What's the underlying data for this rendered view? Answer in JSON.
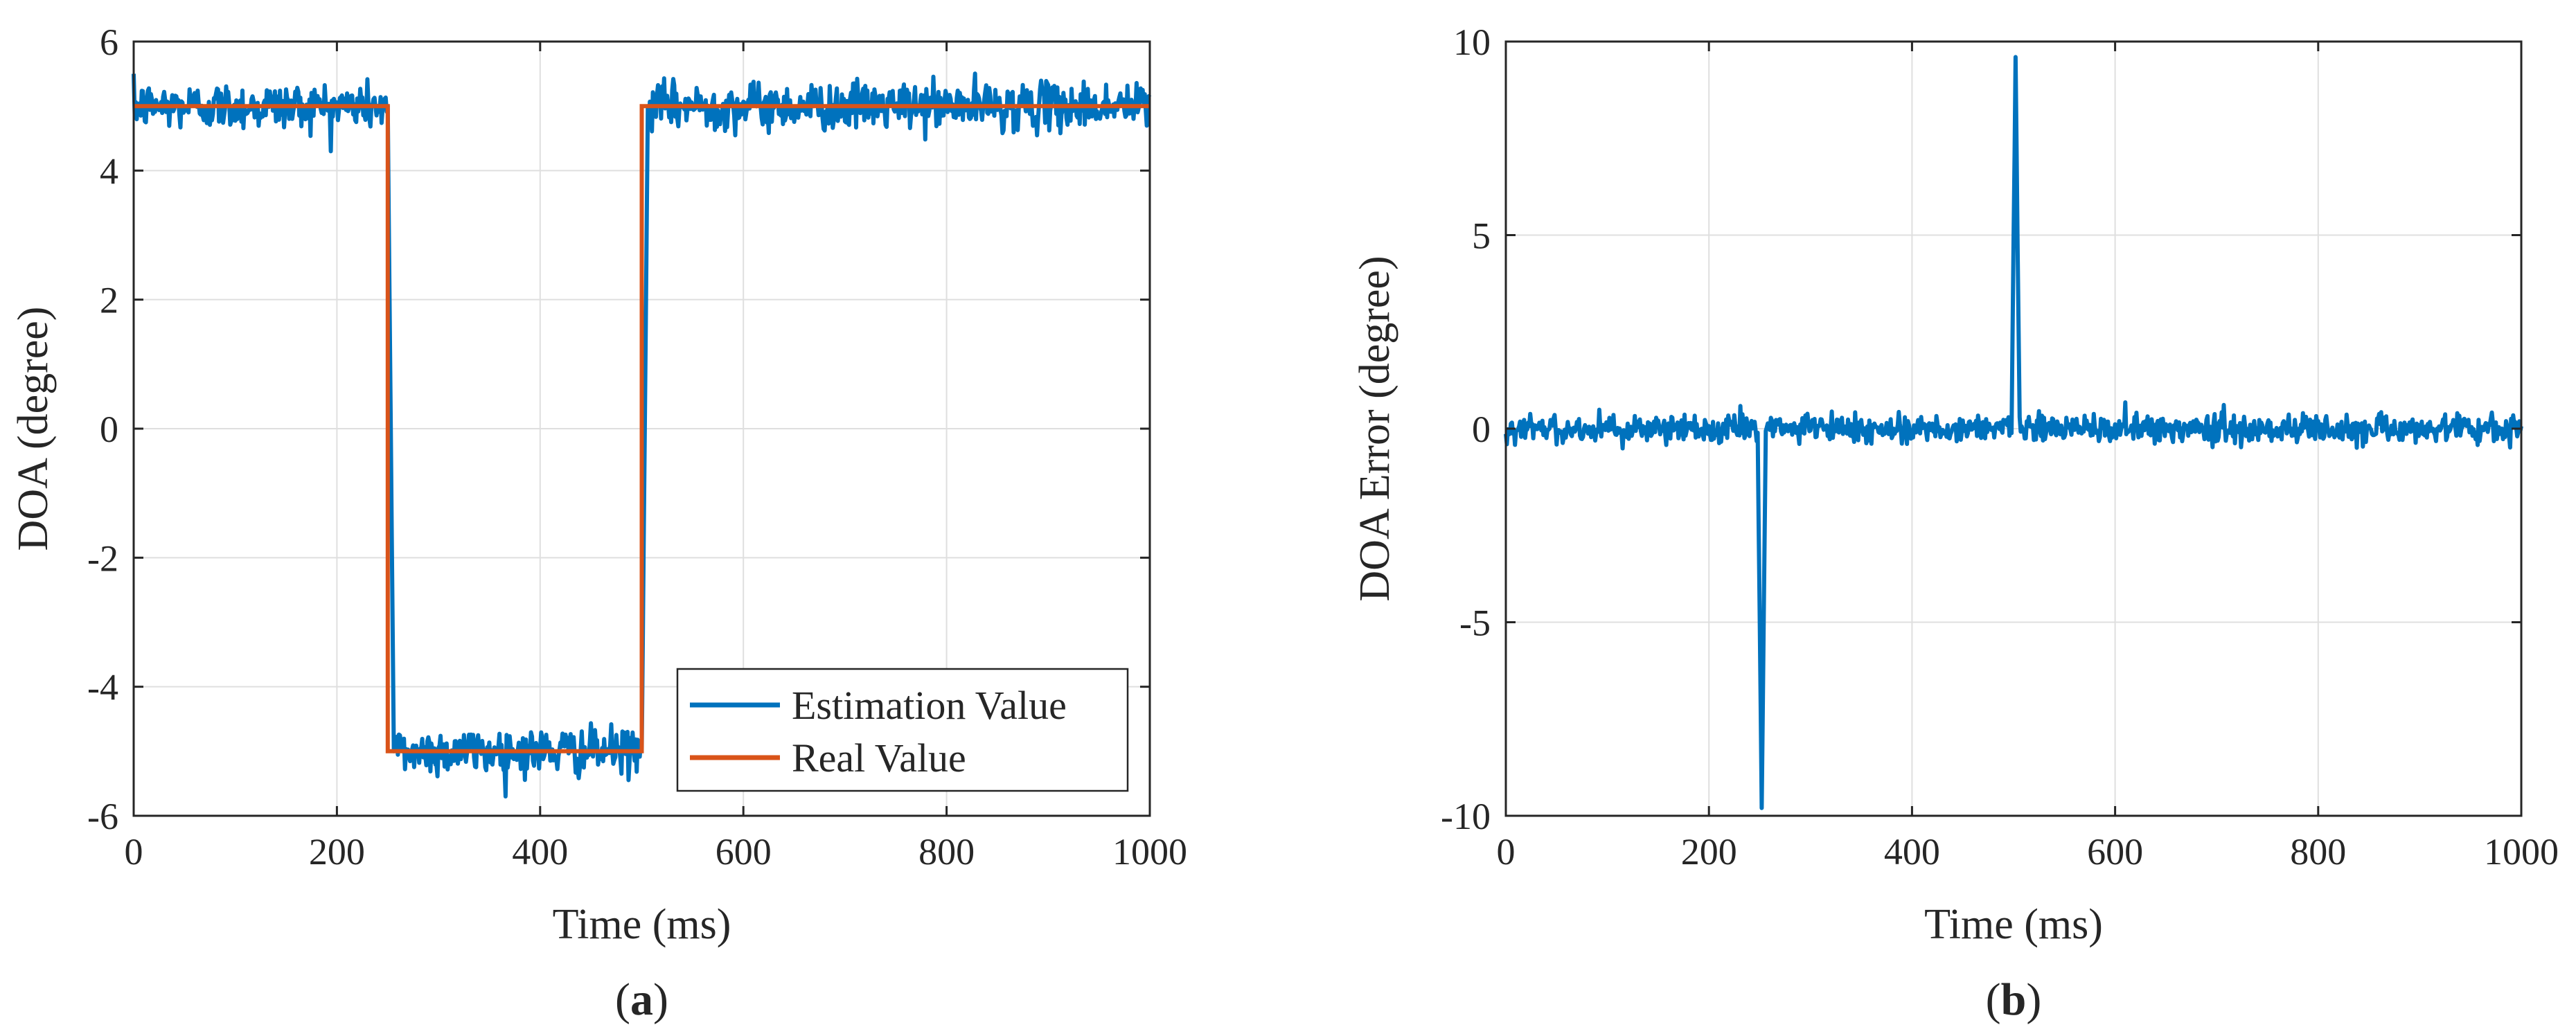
{
  "chart_data": [
    {
      "id": "a",
      "type": "line",
      "caption_open": "(",
      "caption_letter": "a",
      "caption_close": ")",
      "title": "",
      "xlabel": "Time (ms)",
      "ylabel": "DOA (degree)",
      "xlim": [
        0,
        1000
      ],
      "ylim": [
        -6,
        6
      ],
      "grid": true,
      "legend_position": "bottom-right",
      "xticks": [
        0,
        200,
        400,
        600,
        800,
        1000
      ],
      "yticks": [
        -6,
        -4,
        -2,
        0,
        2,
        4,
        6
      ],
      "series": [
        {
          "name": "Estimation Value",
          "color": "#0072BD",
          "kind": "noisy-step",
          "segments": [
            {
              "x": [
                0,
                250
              ],
              "value": 5
            },
            {
              "x": [
                250,
                500
              ],
              "value": -5
            },
            {
              "x": [
                500,
                1000
              ],
              "value": 5
            }
          ],
          "noise_sd": 0.18,
          "noise_range": [
            -0.7,
            0.7
          ],
          "transitions": [
            {
              "x": [
                250,
                256
              ],
              "from": 5,
              "to": -5
            },
            {
              "x": [
                500,
                506
              ],
              "from": -5,
              "to": 5
            }
          ]
        },
        {
          "name": "Real Value",
          "color": "#D95319",
          "kind": "step",
          "x": [
            0,
            250,
            250,
            500,
            500,
            1000
          ],
          "values": [
            5,
            5,
            -5,
            -5,
            5,
            5
          ]
        }
      ]
    },
    {
      "id": "b",
      "type": "line",
      "caption_open": "(",
      "caption_letter": "b",
      "caption_close": ")",
      "title": "",
      "xlabel": "Time (ms)",
      "ylabel": "DOA Error (degree)",
      "xlim": [
        0,
        1000
      ],
      "ylim": [
        -10,
        10
      ],
      "grid": true,
      "xticks": [
        0,
        200,
        400,
        600,
        800,
        1000
      ],
      "yticks": [
        -10,
        -5,
        0,
        5,
        10
      ],
      "series": [
        {
          "name": "DOA Error",
          "color": "#0072BD",
          "kind": "noise-with-spikes",
          "baseline": 0,
          "noise_sd": 0.18,
          "noise_range": [
            -0.75,
            0.75
          ],
          "spikes": [
            {
              "x": 252,
              "value": -9.8,
              "width": 8
            },
            {
              "x": 502,
              "value": 9.6,
              "width": 8
            }
          ]
        }
      ]
    }
  ]
}
